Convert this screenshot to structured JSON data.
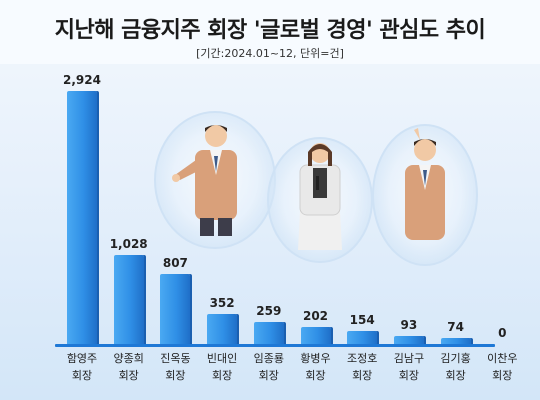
{
  "header": {
    "title": "지난해 금융지주 회장 '글로벌 경영' 관심도 추이",
    "subtitle": "[기간:2024.01~12, 단위=건]"
  },
  "chart_data": {
    "type": "bar",
    "title": "지난해 금융지주 회장 '글로벌 경영' 관심도 추이",
    "subtitle": "[기간:2024.01~12, 단위=건]",
    "categories": [
      "함영주 회장",
      "양종희 회장",
      "진옥동 회장",
      "빈대인 회장",
      "임종룡 회장",
      "황병우 회장",
      "조정호 회장",
      "김남구 회장",
      "김기홍 회장",
      "이찬우 회장"
    ],
    "values": [
      2924,
      1028,
      807,
      352,
      259,
      202,
      154,
      93,
      74,
      0
    ],
    "value_labels": [
      "2,924",
      "1,028",
      "807",
      "352",
      "259",
      "202",
      "154",
      "93",
      "74",
      "0"
    ],
    "ylim": [
      0,
      2924
    ],
    "grid": false,
    "colors": {
      "bar": "#2f8fe6",
      "bar_dark": "#1f6fc8"
    }
  }
}
